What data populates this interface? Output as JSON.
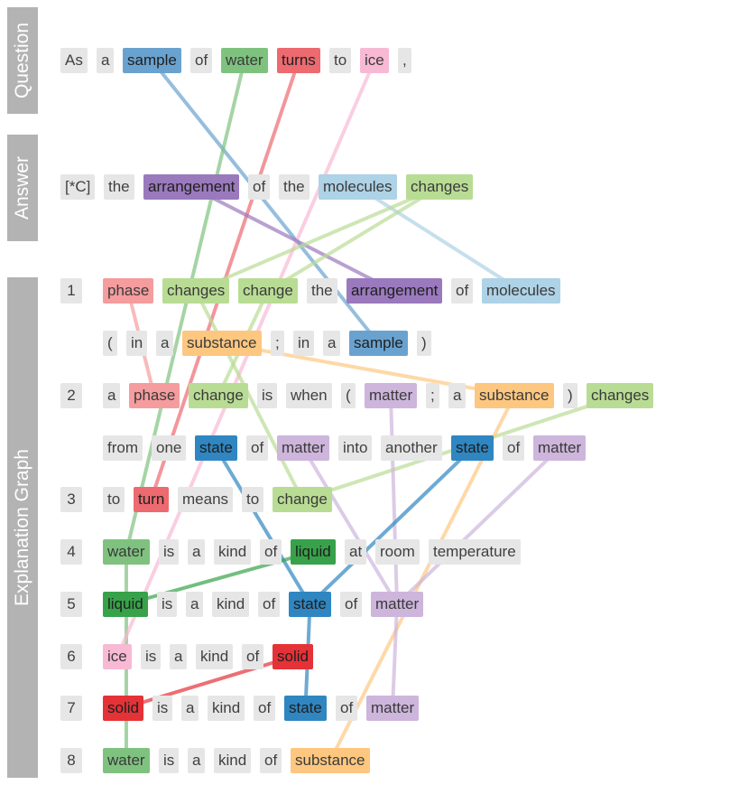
{
  "palette": {
    "default": "#e6e6e6",
    "c1": "#6aa2cf",
    "c2": "#7fc27f",
    "c3": "#ec6a70",
    "c4": "#f8b9d4",
    "c5": "#9a79bd",
    "c6": "#aed2e6",
    "c7": "#b9dc94",
    "c8": "#f59c9e",
    "c9": "#fdc780",
    "c10": "#cdb5dc",
    "c11": "#2f86c1",
    "c12": "#37a24a",
    "c13": "#e43237"
  },
  "sections": [
    {
      "label": "Question"
    },
    {
      "label": "Answer"
    },
    {
      "label": "Explanation Graph"
    }
  ],
  "rows": [
    {
      "section": 0,
      "num": null,
      "tokens": [
        {
          "t": "As"
        },
        {
          "t": "a"
        },
        {
          "t": "sample",
          "c": "c1"
        },
        {
          "t": "of"
        },
        {
          "t": "water",
          "c": "c2"
        },
        {
          "t": "turns",
          "c": "c3"
        },
        {
          "t": "to"
        },
        {
          "t": "ice",
          "c": "c4"
        },
        {
          "t": ","
        }
      ]
    },
    {
      "section": 1,
      "num": null,
      "tokens": [
        {
          "t": "[*C]"
        },
        {
          "t": "the"
        },
        {
          "t": "arrangement",
          "c": "c5"
        },
        {
          "t": "of"
        },
        {
          "t": "the"
        },
        {
          "t": "molecules",
          "c": "c6"
        },
        {
          "t": "changes",
          "c": "c7"
        }
      ]
    },
    {
      "section": 2,
      "num": "1",
      "tokens": [
        {
          "t": "phase",
          "c": "c8"
        },
        {
          "t": "changes",
          "c": "c7"
        },
        {
          "t": "change",
          "c": "c7"
        },
        {
          "t": "the"
        },
        {
          "t": "arrangement",
          "c": "c5"
        },
        {
          "t": "of"
        },
        {
          "t": "molecules",
          "c": "c6"
        }
      ]
    },
    {
      "section": 2,
      "num": null,
      "tokens": [
        {
          "t": "("
        },
        {
          "t": "in"
        },
        {
          "t": "a"
        },
        {
          "t": "substance",
          "c": "c9"
        },
        {
          "t": ";"
        },
        {
          "t": "in"
        },
        {
          "t": "a"
        },
        {
          "t": "sample",
          "c": "c1"
        },
        {
          "t": ")"
        }
      ]
    },
    {
      "section": 2,
      "num": "2",
      "tokens": [
        {
          "t": "a"
        },
        {
          "t": "phase",
          "c": "c8"
        },
        {
          "t": "change",
          "c": "c7"
        },
        {
          "t": "is"
        },
        {
          "t": "when"
        },
        {
          "t": "("
        },
        {
          "t": "matter",
          "c": "c10"
        },
        {
          "t": ";"
        },
        {
          "t": "a"
        },
        {
          "t": "substance",
          "c": "c9"
        },
        {
          "t": ")"
        },
        {
          "t": "changes",
          "c": "c7"
        }
      ]
    },
    {
      "section": 2,
      "num": null,
      "tokens": [
        {
          "t": "from"
        },
        {
          "t": "one"
        },
        {
          "t": "state",
          "c": "c11"
        },
        {
          "t": "of"
        },
        {
          "t": "matter",
          "c": "c10"
        },
        {
          "t": "into"
        },
        {
          "t": "another"
        },
        {
          "t": "state",
          "c": "c11"
        },
        {
          "t": "of"
        },
        {
          "t": "matter",
          "c": "c10"
        }
      ]
    },
    {
      "section": 2,
      "num": "3",
      "tokens": [
        {
          "t": "to"
        },
        {
          "t": "turn",
          "c": "c3"
        },
        {
          "t": "means"
        },
        {
          "t": "to"
        },
        {
          "t": "change",
          "c": "c7"
        }
      ]
    },
    {
      "section": 2,
      "num": "4",
      "tokens": [
        {
          "t": "water",
          "c": "c2"
        },
        {
          "t": "is"
        },
        {
          "t": "a"
        },
        {
          "t": "kind"
        },
        {
          "t": "of"
        },
        {
          "t": "liquid",
          "c": "c12"
        },
        {
          "t": "at"
        },
        {
          "t": "room"
        },
        {
          "t": "temperature"
        }
      ]
    },
    {
      "section": 2,
      "num": "5",
      "tokens": [
        {
          "t": "liquid",
          "c": "c12"
        },
        {
          "t": "is"
        },
        {
          "t": "a"
        },
        {
          "t": "kind"
        },
        {
          "t": "of"
        },
        {
          "t": "state",
          "c": "c11"
        },
        {
          "t": "of"
        },
        {
          "t": "matter",
          "c": "c10"
        }
      ]
    },
    {
      "section": 2,
      "num": "6",
      "tokens": [
        {
          "t": "ice",
          "c": "c4"
        },
        {
          "t": "is"
        },
        {
          "t": "a"
        },
        {
          "t": "kind"
        },
        {
          "t": "of"
        },
        {
          "t": "solid",
          "c": "c13"
        }
      ]
    },
    {
      "section": 2,
      "num": "7",
      "tokens": [
        {
          "t": "solid",
          "c": "c13"
        },
        {
          "t": "is"
        },
        {
          "t": "a"
        },
        {
          "t": "kind"
        },
        {
          "t": "of"
        },
        {
          "t": "state",
          "c": "c11"
        },
        {
          "t": "of"
        },
        {
          "t": "matter",
          "c": "c10"
        }
      ]
    },
    {
      "section": 2,
      "num": "8",
      "tokens": [
        {
          "t": "water",
          "c": "c2"
        },
        {
          "t": "is"
        },
        {
          "t": "a"
        },
        {
          "t": "kind"
        },
        {
          "t": "of"
        },
        {
          "t": "substance",
          "c": "c9"
        }
      ]
    }
  ],
  "links": [
    {
      "from": [
        0,
        2
      ],
      "to": [
        3,
        7
      ],
      "c": "c1"
    },
    {
      "from": [
        0,
        4
      ],
      "to": [
        7,
        0
      ],
      "c": "c2"
    },
    {
      "from": [
        7,
        0
      ],
      "to": [
        11,
        0
      ],
      "c": "c2"
    },
    {
      "from": [
        0,
        5
      ],
      "to": [
        6,
        1
      ],
      "c": "c3"
    },
    {
      "from": [
        0,
        7
      ],
      "to": [
        9,
        0
      ],
      "c": "c4"
    },
    {
      "from": [
        1,
        2
      ],
      "to": [
        2,
        4
      ],
      "c": "c5"
    },
    {
      "from": [
        1,
        5
      ],
      "to": [
        2,
        6
      ],
      "c": "c6"
    },
    {
      "from": [
        1,
        6
      ],
      "to": [
        2,
        1
      ],
      "c": "c7"
    },
    {
      "from": [
        1,
        6
      ],
      "to": [
        2,
        2
      ],
      "c": "c7"
    },
    {
      "from": [
        2,
        2
      ],
      "to": [
        4,
        2
      ],
      "c": "c7"
    },
    {
      "from": [
        4,
        11
      ],
      "to": [
        6,
        4
      ],
      "c": "c7"
    },
    {
      "from": [
        2,
        1
      ],
      "to": [
        6,
        4
      ],
      "c": "c7"
    },
    {
      "from": [
        2,
        0
      ],
      "to": [
        4,
        1
      ],
      "c": "c8"
    },
    {
      "from": [
        3,
        3
      ],
      "to": [
        4,
        9
      ],
      "c": "c9"
    },
    {
      "from": [
        4,
        9
      ],
      "to": [
        11,
        5
      ],
      "c": "c9"
    },
    {
      "from": [
        4,
        6
      ],
      "to": [
        8,
        7
      ],
      "c": "c10"
    },
    {
      "from": [
        5,
        4
      ],
      "to": [
        8,
        7
      ],
      "c": "c10"
    },
    {
      "from": [
        5,
        9
      ],
      "to": [
        8,
        7
      ],
      "c": "c10"
    },
    {
      "from": [
        8,
        7
      ],
      "to": [
        10,
        7
      ],
      "c": "c10"
    },
    {
      "from": [
        5,
        2
      ],
      "to": [
        8,
        5
      ],
      "c": "c11"
    },
    {
      "from": [
        5,
        7
      ],
      "to": [
        8,
        5
      ],
      "c": "c11"
    },
    {
      "from": [
        8,
        5
      ],
      "to": [
        10,
        5
      ],
      "c": "c11"
    },
    {
      "from": [
        7,
        5
      ],
      "to": [
        8,
        0
      ],
      "c": "c12"
    },
    {
      "from": [
        9,
        5
      ],
      "to": [
        10,
        0
      ],
      "c": "c13"
    }
  ]
}
